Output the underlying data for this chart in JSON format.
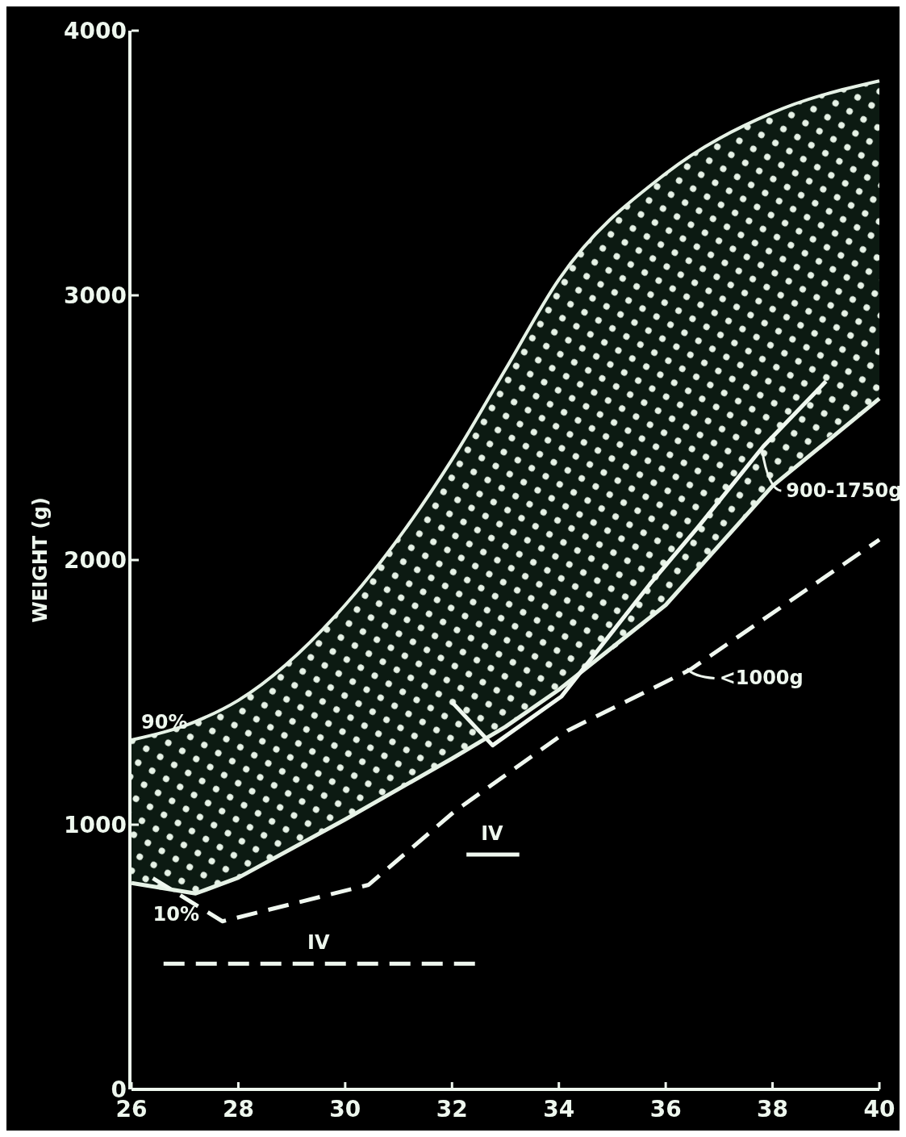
{
  "chart_data": {
    "type": "line",
    "ylabel": "WEIGHT (g)",
    "xlim": [
      26,
      40
    ],
    "ylim": [
      0,
      4000
    ],
    "xticks": [
      26,
      28,
      30,
      32,
      34,
      36,
      38,
      40
    ],
    "yticks": [
      0,
      1000,
      2000,
      3000,
      4000
    ],
    "grid": false,
    "series": [
      {
        "color": "#e6f2e6",
        "line_style": "solid",
        "x": [
          26,
          27.2,
          28,
          30,
          32,
          33,
          34,
          36,
          38,
          40
        ],
        "values": [
          1320,
          1390,
          1470,
          1830,
          2380,
          2720,
          3060,
          3460,
          3690,
          3810
        ],
        "lower": [
          780,
          740,
          800,
          1020,
          1250,
          1370,
          1510,
          1830,
          2280,
          2610
        ],
        "upper": [
          1320,
          1390,
          1470,
          1830,
          2380,
          2720,
          3060,
          3460,
          3690,
          3810
        ]
      },
      {
        "color": "#e6f2e6",
        "line_style": "solid",
        "x": [
          26,
          27.2,
          28,
          30,
          32,
          33,
          34,
          36,
          38,
          40
        ],
        "values": [
          780,
          740,
          800,
          1020,
          1250,
          1370,
          1510,
          1830,
          2280,
          2610
        ]
      },
      {
        "color": "#f0f8f0",
        "line_style": "solid",
        "x": [
          32.0,
          32.76,
          34.05,
          35.7,
          36.6,
          37.83,
          39.0
        ],
        "values": [
          1463,
          1300,
          1485,
          1908,
          2123,
          2430,
          2675
        ]
      },
      {
        "color": "#f0f8f0",
        "line_style": "dashed",
        "x": [
          26.4,
          27.7,
          30.44,
          32.04,
          34.17,
          36.46,
          40
        ],
        "values": [
          798,
          635,
          773,
          1049,
          1356,
          1586,
          2077
        ]
      },
      {
        "color": "#f0f8f0",
        "line_style": "dashed",
        "x": [
          26.6,
          32.5
        ],
        "values": [
          475,
          475
        ]
      },
      {
        "color": "#f0f8f0",
        "line_style": "solid",
        "x": [
          32.27,
          33.26
        ],
        "values": [
          887,
          887
        ]
      }
    ],
    "annotations": [
      {
        "text": "90%",
        "x": 26,
        "y": 1320
      },
      {
        "text": "10%",
        "x": 26.4,
        "y": 760
      },
      {
        "text": "900-1750g",
        "x": 37.8,
        "y": 2420
      },
      {
        "text": "<1000g",
        "x": 36.4,
        "y": 1590
      },
      {
        "text": "IV",
        "x": 29.5,
        "y": 475
      },
      {
        "text": "IV",
        "x": 32.75,
        "y": 887
      }
    ]
  }
}
